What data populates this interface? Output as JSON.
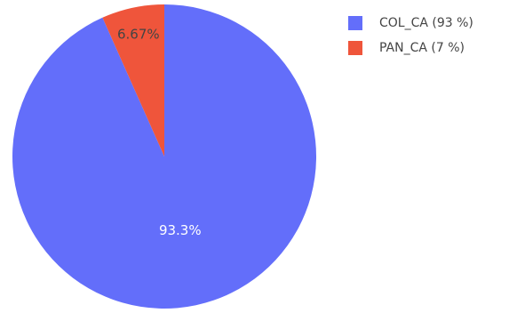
{
  "chart_data": {
    "type": "pie",
    "title": "",
    "slices": [
      {
        "label": "COL_CA",
        "legend_label": "COL_CA (93 %)",
        "value": 93.3,
        "text": "93.3%",
        "color": "#636efa",
        "text_color": "#ffffff"
      },
      {
        "label": "PAN_CA",
        "legend_label": "PAN_CA (7 %)",
        "value": 6.67,
        "text": "6.67%",
        "color": "#ef553b",
        "text_color": "#444444"
      }
    ],
    "legend_position": "top-right",
    "direction": "clockwise",
    "start": "top"
  }
}
